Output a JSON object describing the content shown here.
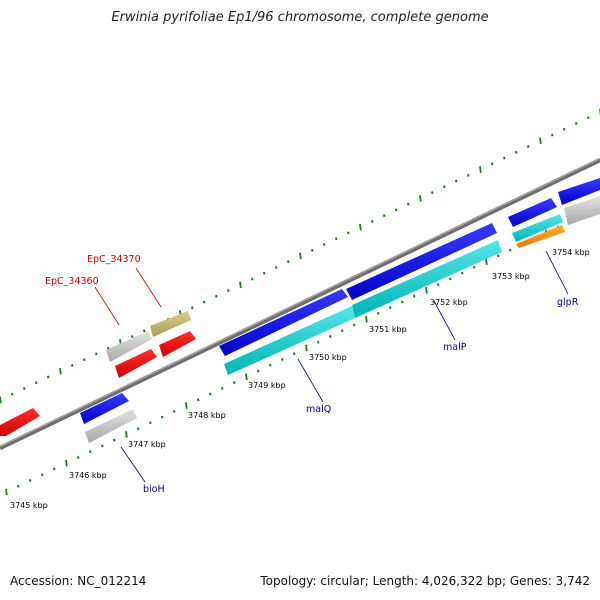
{
  "title": "Erwinia pyrifoliae Ep1/96 chromosome, complete genome",
  "accession": "Accession: NC_012214",
  "summary": "Topology: circular; Length: 4,026,322 bp; Genes: 3,742",
  "colors": {
    "backbone": "#7a7a7a",
    "tick": "#1a7f1a",
    "label_red": "#cc0000",
    "label_blue": "#00008b"
  },
  "scale_labels": [
    "3745 kbp",
    "3746 kbp",
    "3747 kbp",
    "3748 kbp",
    "3749 kbp",
    "3750 kbp",
    "3751 kbp",
    "3752 kbp",
    "3753 kbp",
    "3754 kbp"
  ],
  "gene_labels": [
    {
      "text": "EpC_34370",
      "color": "#cc0000"
    },
    {
      "text": "EpC_34360",
      "color": "#cc0000"
    },
    {
      "text": "bioH",
      "color": "#00008b"
    },
    {
      "text": "malQ",
      "color": "#00008b"
    },
    {
      "text": "malP",
      "color": "#00008b"
    },
    {
      "text": "glpR",
      "color": "#00008b"
    }
  ]
}
